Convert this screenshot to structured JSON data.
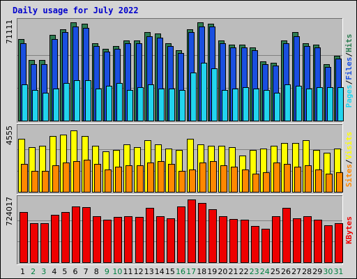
{
  "chart_data": {
    "type": "bar",
    "title": "Daily usage for July 2022",
    "categories": [
      "1",
      "2",
      "3",
      "4",
      "5",
      "6",
      "7",
      "8",
      "9",
      "10",
      "11",
      "12",
      "13",
      "14",
      "15",
      "16",
      "17",
      "18",
      "19",
      "20",
      "21",
      "22",
      "23",
      "24",
      "25",
      "26",
      "27",
      "28",
      "29",
      "30",
      "31"
    ],
    "weekend_days": [
      "2",
      "3",
      "9",
      "10",
      "16",
      "17",
      "23",
      "24",
      "30",
      "31"
    ],
    "colors": {
      "title": "#0000cc",
      "hits": "#2e7d52",
      "files": "#1a4fe0",
      "pages": "#22d4ee",
      "visits": "#ffff00",
      "sites": "#ff8800",
      "kbytes": "#ee0000",
      "weekday_tick": "#000000",
      "weekend_tick": "#008040",
      "background": "#d4d4d4",
      "panel": "#bcbcbc"
    },
    "panels": [
      {
        "id": "requests",
        "ymax_label": "71111",
        "ymax": 71111,
        "legend": [
          "Pages",
          "/",
          "Files",
          "/",
          "Hits"
        ],
        "legend_colors": [
          "#22d4ee",
          "#000000",
          "#1a4fe0",
          "#000000",
          "#2e7d52"
        ],
        "series": [
          {
            "name": "Hits",
            "values": [
              59000,
              44000,
              44000,
              62000,
              66000,
              71000,
              70000,
              56000,
              52000,
              54000,
              58000,
              58000,
              64000,
              63000,
              56000,
              51000,
              66000,
              71000,
              70000,
              58000,
              55000,
              55000,
              53000,
              43000,
              42000,
              58000,
              64000,
              56000,
              55000,
              41000,
              47000
            ]
          },
          {
            "name": "Files",
            "values": [
              56000,
              41000,
              41000,
              59000,
              64000,
              68000,
              67000,
              54000,
              50000,
              52000,
              56000,
              56000,
              61000,
              60000,
              54000,
              49000,
              64000,
              68000,
              68000,
              56000,
              53000,
              53000,
              51000,
              41000,
              40000,
              56000,
              61000,
              54000,
              53000,
              39000,
              45000
            ]
          },
          {
            "name": "Pages",
            "values": [
              26000,
              22000,
              20000,
              23000,
              27000,
              29000,
              29000,
              23000,
              25000,
              27000,
              22000,
              24000,
              26000,
              23000,
              23000,
              22000,
              35000,
              42000,
              38000,
              22000,
              23000,
              24000,
              23000,
              22000,
              20000,
              26000,
              25000,
              23000,
              24000,
              24000,
              24000
            ]
          }
        ]
      },
      {
        "id": "visits",
        "ymax_label": "4555",
        "ymax": 4555,
        "legend": [
          "Sites",
          "/",
          "Visits"
        ],
        "legend_colors": [
          "#ff8800",
          "#000000",
          "#ffff00"
        ],
        "series": [
          {
            "name": "Visits",
            "values": [
              3800,
              3200,
              3300,
              4000,
              4100,
              4400,
              4000,
              3300,
              2900,
              3000,
              3400,
              3200,
              3700,
              3400,
              3100,
              3000,
              3800,
              3400,
              3300,
              3300,
              3200,
              2600,
              3000,
              3100,
              3300,
              3500,
              3500,
              3700,
              3000,
              2800,
              3100
            ]
          },
          {
            "name": "Sites",
            "values": [
              2000,
              1500,
              1500,
              1900,
              2100,
              2200,
              2300,
              2000,
              1600,
              1800,
              1900,
              1900,
              2100,
              2200,
              2000,
              1500,
              1600,
              2100,
              2200,
              1900,
              1800,
              1600,
              1300,
              1400,
              2100,
              2000,
              1800,
              1900,
              1600,
              1300,
              1400
            ]
          }
        ]
      },
      {
        "id": "kbytes",
        "ymax_label": "724017",
        "ymax": 724017,
        "legend": [
          "KBytes"
        ],
        "legend_colors": [
          "#ee0000"
        ],
        "series": [
          {
            "name": "KBytes",
            "values": [
              580000,
              450000,
              450000,
              550000,
              580000,
              645000,
              635000,
              530000,
              490000,
              520000,
              530000,
              525000,
              625000,
              530000,
              510000,
              640000,
              720000,
              680000,
              610000,
              530000,
              495000,
              490000,
              415000,
              390000,
              530000,
              625000,
              505000,
              530000,
              490000,
              425000,
              450000
            ]
          }
        ]
      }
    ]
  }
}
